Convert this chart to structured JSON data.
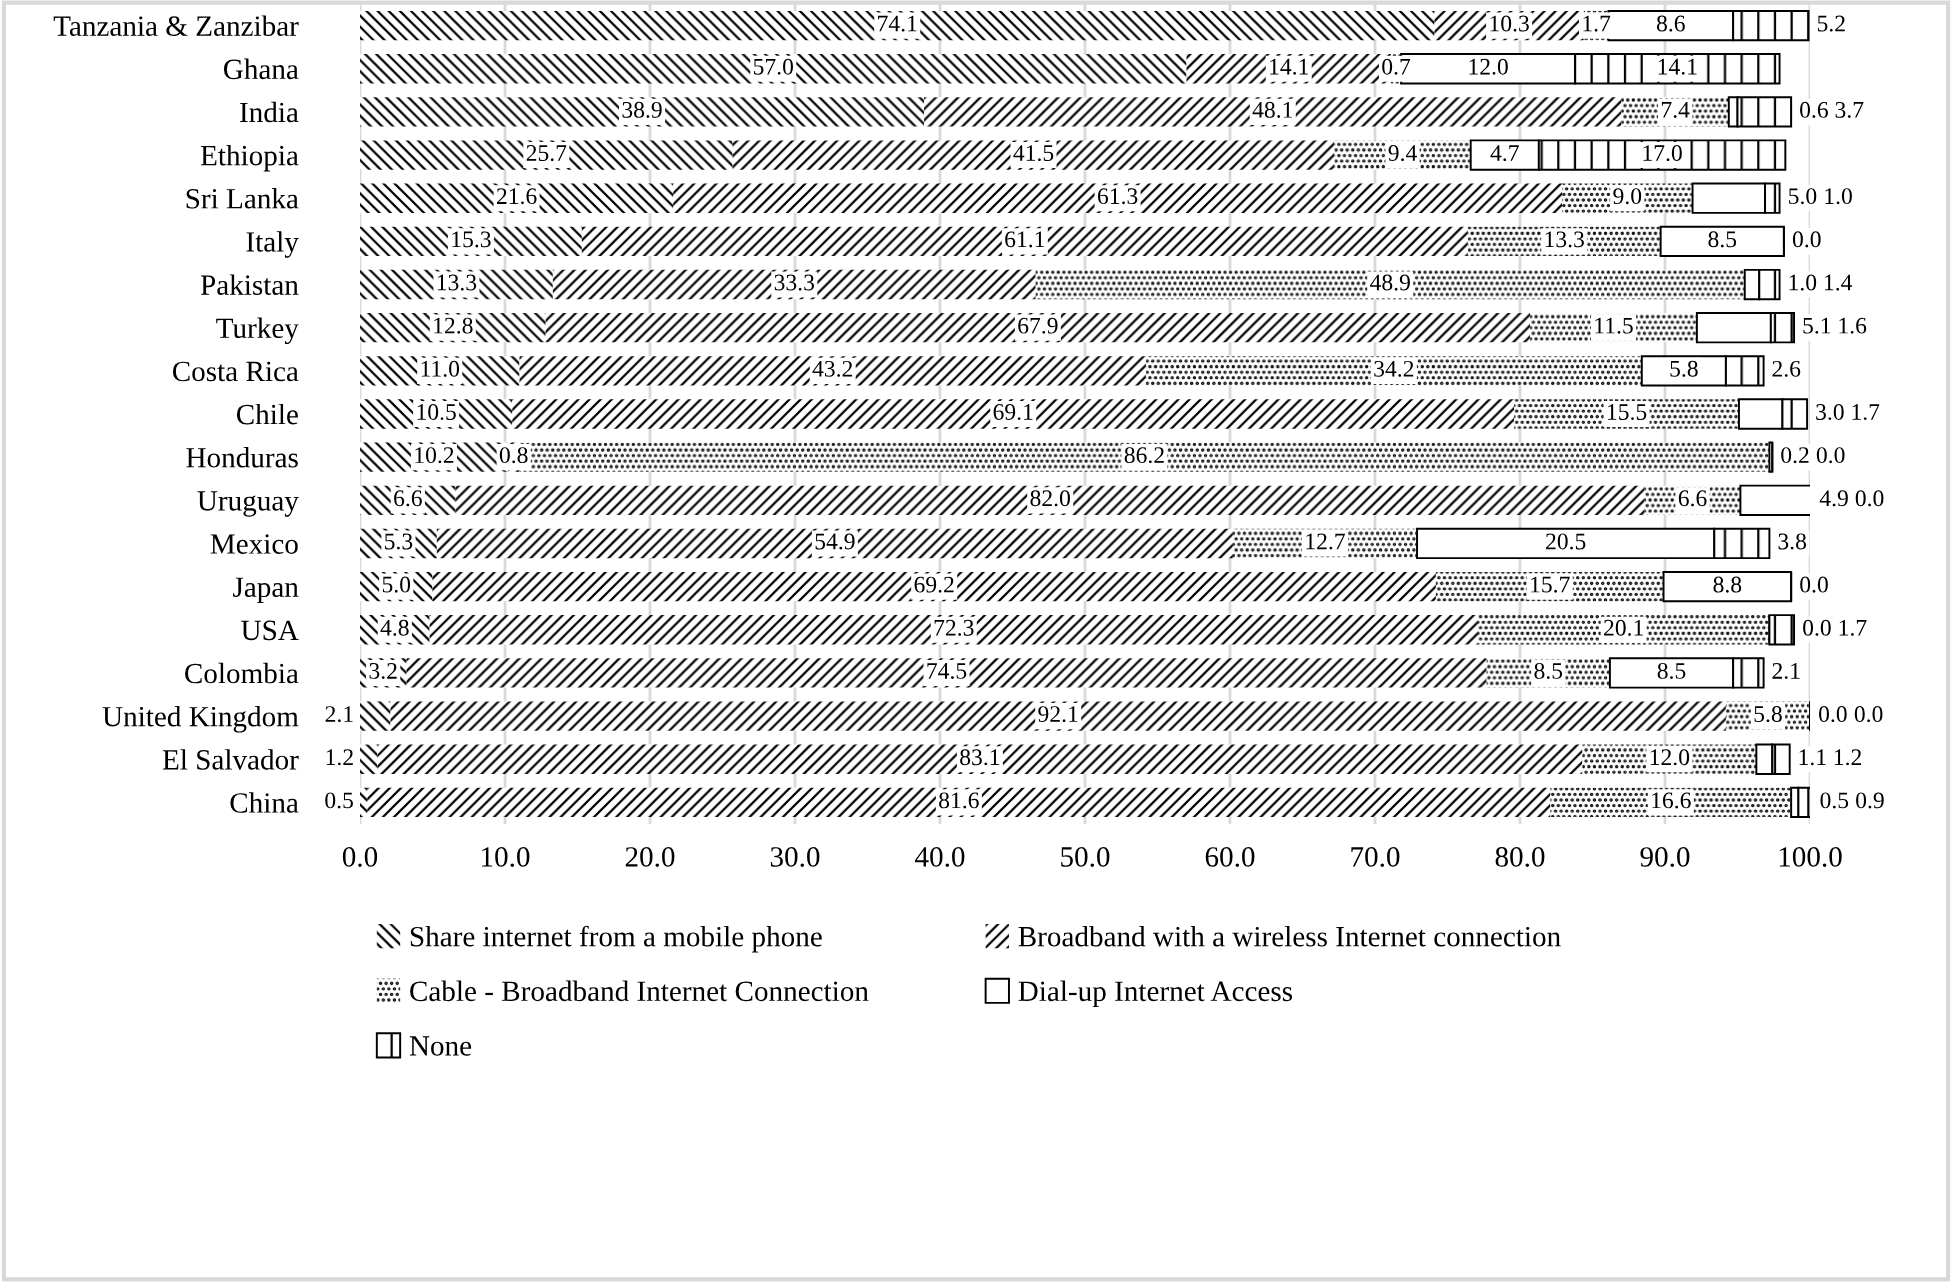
{
  "chart_data": {
    "type": "bar",
    "orientation": "horizontal",
    "stacked": true,
    "grid": "x",
    "legend": "bottom",
    "categories": [
      "Tanzania & Zanzibar",
      "Ghana",
      "India",
      "Ethiopia",
      "Sri Lanka",
      "Italy",
      "Pakistan",
      "Turkey",
      "Costa Rica",
      "Chile",
      "Honduras",
      "Uruguay",
      "Mexico",
      "Japan",
      "USA",
      "Colombia",
      "United Kingdom",
      "El Salvador",
      "China"
    ],
    "xlim": [
      0,
      100
    ],
    "xticks": [
      {
        "value": 0,
        "label": "0.0"
      },
      {
        "value": 10,
        "label": "10.0"
      },
      {
        "value": 20,
        "label": "20.0"
      },
      {
        "value": 30,
        "label": "30.0"
      },
      {
        "value": 40,
        "label": "40.0"
      },
      {
        "value": 50,
        "label": "50.0"
      },
      {
        "value": 60,
        "label": "60.0"
      },
      {
        "value": 70,
        "label": "70.0"
      },
      {
        "value": 80,
        "label": "80.0"
      },
      {
        "value": 90,
        "label": "90.0"
      },
      {
        "value": 100,
        "label": "100.0"
      }
    ],
    "series": [
      {
        "name": "Share internet from a mobile phone",
        "color": "#000000",
        "values": [
          74.1,
          57.0,
          38.9,
          25.7,
          21.6,
          15.3,
          13.3,
          12.8,
          11.0,
          10.5,
          10.2,
          6.6,
          5.3,
          5.0,
          4.8,
          3.2,
          2.1,
          1.2,
          0.5
        ],
        "value_labels": [
          "74.1",
          "57.0",
          "38.9",
          "25.7",
          "21.6",
          "15.3",
          "13.3",
          "12.8",
          "11.0",
          "10.5",
          "10.2",
          "6.6",
          "5.3",
          "5.0",
          "4.8",
          "3.2",
          "2.1",
          "1.2",
          "0.5"
        ]
      },
      {
        "name": "Broadband with a wireless Internet connection",
        "color": "#000000",
        "values": [
          10.3,
          14.1,
          48.1,
          41.5,
          61.3,
          61.1,
          33.3,
          67.9,
          43.2,
          69.1,
          0.8,
          82.0,
          54.9,
          69.2,
          72.3,
          74.5,
          92.1,
          83.1,
          81.6
        ],
        "value_labels": [
          "10.3",
          "14.1",
          "48.1",
          "41.5",
          "61.3",
          "61.1",
          "33.3",
          "67.9",
          "43.2",
          "69.1",
          "0.8",
          "82.0",
          "54.9",
          "69.2",
          "72.3",
          "74.5",
          "92.1",
          "83.1",
          "81.6"
        ]
      },
      {
        "name": "Cable - Broadband Internet Connection",
        "color": "#000000",
        "values": [
          1.7,
          0.7,
          7.4,
          9.4,
          9.0,
          13.3,
          48.9,
          11.5,
          34.2,
          15.5,
          86.2,
          6.6,
          12.7,
          15.7,
          20.1,
          8.5,
          5.8,
          12.0,
          16.6
        ],
        "value_labels": [
          "1.7",
          "0.7",
          "7.4",
          "9.4",
          "9.0",
          "13.3",
          "48.9",
          "11.5",
          "34.2",
          "15.5",
          "86.2",
          "6.6",
          "12.7",
          "15.7",
          "20.1",
          "8.5",
          "5.8",
          "12.0",
          "16.6"
        ]
      },
      {
        "name": "Dial-up Internet Access",
        "color": "#000000",
        "values": [
          8.6,
          12.0,
          0.6,
          4.7,
          5.0,
          8.5,
          1.0,
          5.1,
          5.8,
          3.0,
          0.2,
          4.9,
          20.5,
          8.8,
          0.0,
          8.5,
          0.0,
          1.1,
          0.5
        ],
        "value_labels": [
          "8.6",
          "12.0",
          "0.6",
          "4.7",
          "5.0",
          "8.5",
          "1.0",
          "5.1",
          "5.8",
          "3.0",
          "0.2",
          "4.9",
          "20.5",
          "8.8",
          "0.0",
          "8.5",
          "0.0",
          "1.1",
          "0.5"
        ]
      },
      {
        "name": "None",
        "color": "#000000",
        "values": [
          5.2,
          14.1,
          3.7,
          17.0,
          1.0,
          0.0,
          1.4,
          1.6,
          2.6,
          1.7,
          0.0,
          0.0,
          3.8,
          0.0,
          1.7,
          2.1,
          0.0,
          1.2,
          0.9
        ],
        "value_labels": [
          "5.2",
          "14.1",
          "3.7",
          "17.0",
          "1.0",
          "0.0",
          "1.4",
          "1.6",
          "2.6",
          "1.7",
          "0.0",
          "0.0",
          "3.8",
          "0.0",
          "1.7",
          "2.1",
          "0.0",
          "1.2",
          "0.9"
        ]
      }
    ]
  }
}
